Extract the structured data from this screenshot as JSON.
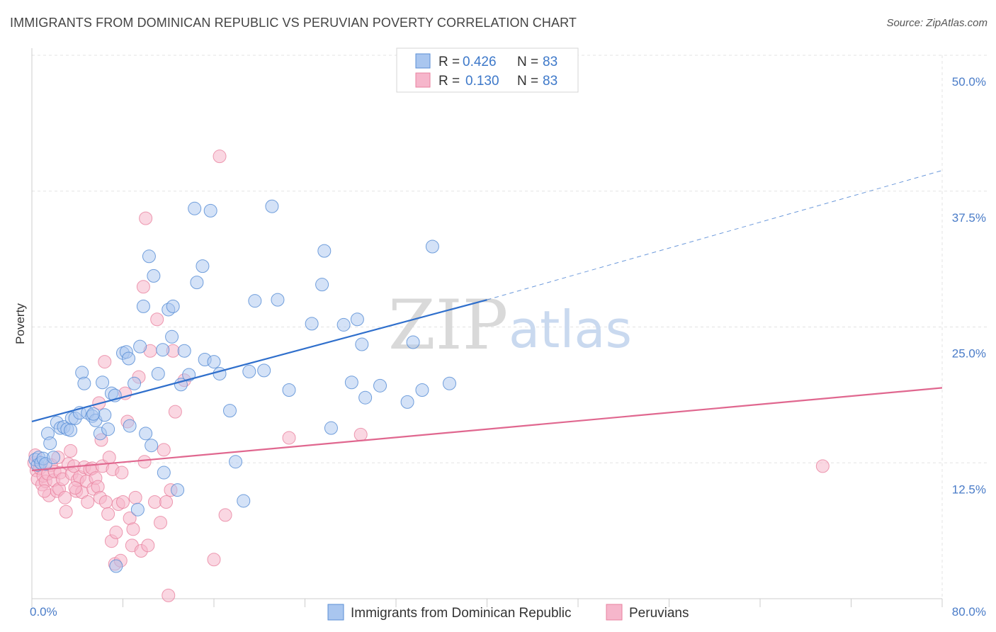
{
  "header": {
    "title": "IMMIGRANTS FROM DOMINICAN REPUBLIC VS PERUVIAN POVERTY CORRELATION CHART",
    "source": "Source: ZipAtlas.com"
  },
  "watermark": {
    "zip": "ZIP",
    "atlas": "atlas"
  },
  "colors": {
    "blue_fill": "#a9c6ef",
    "blue_stroke": "#5b8fd6",
    "blue_line": "#2f6fcc",
    "pink_fill": "#f6b6cb",
    "pink_stroke": "#e8829f",
    "pink_line": "#e0678f",
    "grid": "#e3e3e3",
    "tick_text": "#4a7cc8"
  },
  "legend": {
    "rows": [
      {
        "r_label": "R =",
        "r_value": "0.426",
        "n_label": "N =",
        "n_value": "83"
      },
      {
        "r_label": "R =",
        "r_value": "0.130",
        "n_label": "N =",
        "n_value": "83"
      }
    ]
  },
  "chart_data": {
    "type": "scatter",
    "title": "IMMIGRANTS FROM DOMINICAN REPUBLIC VS PERUVIAN POVERTY CORRELATION CHART",
    "xlabel": "",
    "ylabel": "Poverty",
    "xlim": [
      0,
      80
    ],
    "ylim": [
      0,
      50
    ],
    "x_tick_labels": [
      "0.0%",
      "80.0%"
    ],
    "y_ticks": [
      12.5,
      25,
      37.5,
      50
    ],
    "y_tick_labels": [
      "12.5%",
      "25.0%",
      "37.5%",
      "50.0%"
    ],
    "grid": true,
    "legend_position": "top-center",
    "series": [
      {
        "name": "Immigrants from Dominican Republic",
        "r": 0.426,
        "n": 83,
        "trend": {
          "x": [
            0,
            40
          ],
          "y": [
            16.3,
            27.5
          ],
          "dashed_to": [
            80,
            39.4
          ]
        },
        "points": [
          [
            0.3,
            12.8
          ],
          [
            0.5,
            12.3
          ],
          [
            0.6,
            13.0
          ],
          [
            0.8,
            12.5
          ],
          [
            1.0,
            12.9
          ],
          [
            1.2,
            12.4
          ],
          [
            1.4,
            15.2
          ],
          [
            1.6,
            14.3
          ],
          [
            1.9,
            13.0
          ],
          [
            2.2,
            16.2
          ],
          [
            2.5,
            15.7
          ],
          [
            2.8,
            15.8
          ],
          [
            3.1,
            15.6
          ],
          [
            3.5,
            16.6
          ],
          [
            3.8,
            16.6
          ],
          [
            4.2,
            17.1
          ],
          [
            4.4,
            20.8
          ],
          [
            4.6,
            19.8
          ],
          [
            4.9,
            17.1
          ],
          [
            5.3,
            16.8
          ],
          [
            5.6,
            16.4
          ],
          [
            6.0,
            15.2
          ],
          [
            6.2,
            19.9
          ],
          [
            6.4,
            16.9
          ],
          [
            6.7,
            15.6
          ],
          [
            7.0,
            18.9
          ],
          [
            7.3,
            18.7
          ],
          [
            8.0,
            22.6
          ],
          [
            8.3,
            22.7
          ],
          [
            8.5,
            22.1
          ],
          [
            8.6,
            15.9
          ],
          [
            9.0,
            19.8
          ],
          [
            9.3,
            8.2
          ],
          [
            9.5,
            23.2
          ],
          [
            9.8,
            26.9
          ],
          [
            10.0,
            15.2
          ],
          [
            10.3,
            31.5
          ],
          [
            10.5,
            14.1
          ],
          [
            10.7,
            29.7
          ],
          [
            11.1,
            20.7
          ],
          [
            11.5,
            22.9
          ],
          [
            11.6,
            11.6
          ],
          [
            12.0,
            26.6
          ],
          [
            12.3,
            24.1
          ],
          [
            12.4,
            26.9
          ],
          [
            12.8,
            10.0
          ],
          [
            13.1,
            19.7
          ],
          [
            13.4,
            22.8
          ],
          [
            13.8,
            20.6
          ],
          [
            14.3,
            35.9
          ],
          [
            14.5,
            29.1
          ],
          [
            15.0,
            30.6
          ],
          [
            15.2,
            22.0
          ],
          [
            15.7,
            35.7
          ],
          [
            16.0,
            21.8
          ],
          [
            16.5,
            20.7
          ],
          [
            17.4,
            17.3
          ],
          [
            17.9,
            12.6
          ],
          [
            18.6,
            9.0
          ],
          [
            19.1,
            20.9
          ],
          [
            19.6,
            27.4
          ],
          [
            20.4,
            21.0
          ],
          [
            21.1,
            36.1
          ],
          [
            21.6,
            27.5
          ],
          [
            22.6,
            19.2
          ],
          [
            24.6,
            25.3
          ],
          [
            25.5,
            28.9
          ],
          [
            25.7,
            32.0
          ],
          [
            26.3,
            15.7
          ],
          [
            27.4,
            25.2
          ],
          [
            28.1,
            19.9
          ],
          [
            28.6,
            25.7
          ],
          [
            29.0,
            23.4
          ],
          [
            29.3,
            18.5
          ],
          [
            30.6,
            19.6
          ],
          [
            33.0,
            18.1
          ],
          [
            33.5,
            23.6
          ],
          [
            34.3,
            19.2
          ],
          [
            35.2,
            32.4
          ],
          [
            36.7,
            19.8
          ],
          [
            7.4,
            3.0
          ],
          [
            5.4,
            17.0
          ],
          [
            3.4,
            15.5
          ]
        ]
      },
      {
        "name": "Peruvians",
        "r": 0.13,
        "n": 83,
        "trend": {
          "x": [
            0,
            80
          ],
          "y": [
            11.8,
            19.4
          ]
        },
        "points": [
          [
            0.2,
            12.5
          ],
          [
            0.4,
            11.8
          ],
          [
            0.5,
            11.0
          ],
          [
            0.7,
            12.0
          ],
          [
            0.9,
            10.5
          ],
          [
            1.0,
            11.3
          ],
          [
            1.2,
            10.8
          ],
          [
            1.4,
            11.5
          ],
          [
            1.5,
            9.5
          ],
          [
            1.7,
            12.3
          ],
          [
            1.9,
            10.9
          ],
          [
            2.0,
            11.7
          ],
          [
            2.2,
            9.9
          ],
          [
            2.4,
            10.1
          ],
          [
            2.5,
            11.6
          ],
          [
            2.7,
            11.0
          ],
          [
            2.9,
            9.3
          ],
          [
            3.0,
            8.0
          ],
          [
            3.2,
            12.4
          ],
          [
            3.4,
            13.6
          ],
          [
            3.5,
            11.5
          ],
          [
            3.7,
            12.2
          ],
          [
            3.9,
            9.9
          ],
          [
            4.0,
            10.9
          ],
          [
            4.2,
            11.2
          ],
          [
            4.4,
            9.8
          ],
          [
            4.6,
            12.1
          ],
          [
            4.8,
            10.8
          ],
          [
            4.9,
            8.9
          ],
          [
            5.1,
            11.9
          ],
          [
            5.3,
            12.0
          ],
          [
            5.4,
            10.1
          ],
          [
            5.6,
            11.1
          ],
          [
            5.8,
            10.3
          ],
          [
            6.0,
            9.3
          ],
          [
            6.2,
            12.2
          ],
          [
            6.4,
            21.8
          ],
          [
            6.5,
            8.9
          ],
          [
            6.7,
            7.8
          ],
          [
            6.8,
            13.0
          ],
          [
            7.0,
            5.3
          ],
          [
            7.1,
            11.9
          ],
          [
            7.3,
            3.2
          ],
          [
            7.4,
            6.1
          ],
          [
            7.6,
            8.7
          ],
          [
            7.8,
            3.5
          ],
          [
            8.0,
            8.9
          ],
          [
            8.2,
            18.9
          ],
          [
            8.4,
            16.3
          ],
          [
            8.6,
            7.4
          ],
          [
            8.8,
            4.9
          ],
          [
            8.9,
            6.4
          ],
          [
            9.1,
            9.3
          ],
          [
            9.4,
            20.4
          ],
          [
            9.6,
            4.4
          ],
          [
            9.8,
            28.7
          ],
          [
            10.0,
            35.0
          ],
          [
            10.2,
            4.9
          ],
          [
            10.4,
            22.8
          ],
          [
            10.8,
            8.9
          ],
          [
            11.0,
            25.7
          ],
          [
            11.3,
            7.0
          ],
          [
            11.6,
            13.7
          ],
          [
            11.8,
            8.9
          ],
          [
            12.0,
            0.3
          ],
          [
            12.2,
            10.0
          ],
          [
            12.4,
            22.8
          ],
          [
            12.6,
            17.2
          ],
          [
            13.4,
            20.1
          ],
          [
            16.0,
            3.6
          ],
          [
            16.5,
            40.7
          ],
          [
            17.0,
            7.7
          ],
          [
            22.6,
            14.8
          ],
          [
            28.9,
            15.1
          ],
          [
            69.5,
            12.2
          ],
          [
            0.3,
            13.2
          ],
          [
            1.1,
            9.9
          ],
          [
            2.3,
            13.0
          ],
          [
            3.8,
            10.2
          ],
          [
            5.9,
            18.0
          ],
          [
            6.1,
            14.6
          ],
          [
            7.9,
            11.6
          ],
          [
            9.9,
            12.6
          ]
        ]
      }
    ]
  }
}
